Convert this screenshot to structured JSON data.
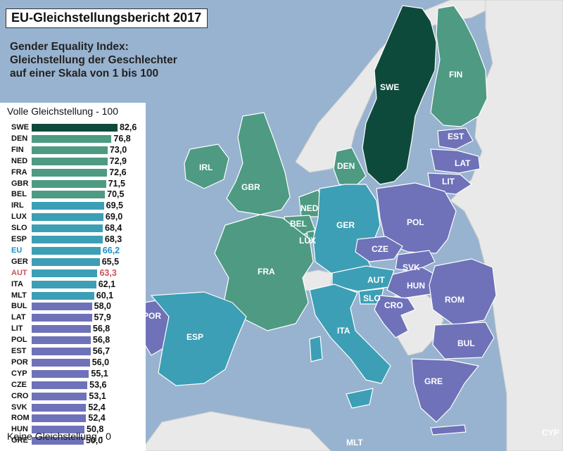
{
  "title": "EU-Gleichstellungsbericht 2017",
  "subtitle_lines": [
    "Gender Equality Index:",
    "Gleichstellung der Geschlechter",
    "auf einer Skala von 1 bis 100"
  ],
  "legend": {
    "top_label": "Volle Gleichstellung - 100",
    "bottom_label": "Keine Gleichstellung - 0"
  },
  "colors": {
    "dark_green": "#0e4a3c",
    "mid_green": "#4e9a82",
    "teal": "#3c9fb5",
    "purple": "#6f72b8",
    "eu_highlight": "#1a8fc8",
    "aut_highlight": "#d0505a",
    "sea": "#98b3cf",
    "nonEU": "#e9e9e9"
  },
  "chart_data": {
    "type": "bar",
    "orientation": "horizontal",
    "scale": [
      0,
      100
    ],
    "categories": [
      "SWE",
      "DEN",
      "FIN",
      "NED",
      "FRA",
      "GBR",
      "BEL",
      "IRL",
      "LUX",
      "SLO",
      "ESP",
      "EU",
      "GER",
      "AUT",
      "ITA",
      "MLT",
      "BUL",
      "LAT",
      "LIT",
      "POL",
      "EST",
      "POR",
      "CYP",
      "CZE",
      "CRO",
      "SVK",
      "ROM",
      "HUN",
      "GRE"
    ],
    "values": [
      "82,6",
      "76,8",
      "73,0",
      "72,9",
      "72,6",
      "71,5",
      "70,5",
      "69,5",
      "69,0",
      "68,4",
      "68,3",
      "66,2",
      "65,5",
      "63,3",
      "62,1",
      "60,1",
      "58,0",
      "57,9",
      "56,8",
      "56,8",
      "56,7",
      "56,0",
      "55,1",
      "53,6",
      "53,1",
      "52,4",
      "52,4",
      "50,8",
      "50,0"
    ]
  },
  "map_labels": {
    "SWE": "SWE",
    "FIN": "FIN",
    "EST": "EST",
    "LAT": "LAT",
    "LIT": "LIT",
    "IRL": "IRL",
    "GBR": "GBR",
    "DEN": "DEN",
    "NED": "NED",
    "BEL": "BEL",
    "LUX": "LUX",
    "GER": "GER",
    "POL": "POL",
    "CZE": "CZE",
    "SVK": "SVK",
    "AUT": "AUT",
    "HUN": "HUN",
    "ROM": "ROM",
    "FRA": "FRA",
    "SLO": "SLO",
    "CRO": "CRO",
    "POR": "POR",
    "ESP": "ESP",
    "ITA": "ITA",
    "BUL": "BUL",
    "GRE": "GRE",
    "MLT": "MLT",
    "CYP": "CYP"
  }
}
